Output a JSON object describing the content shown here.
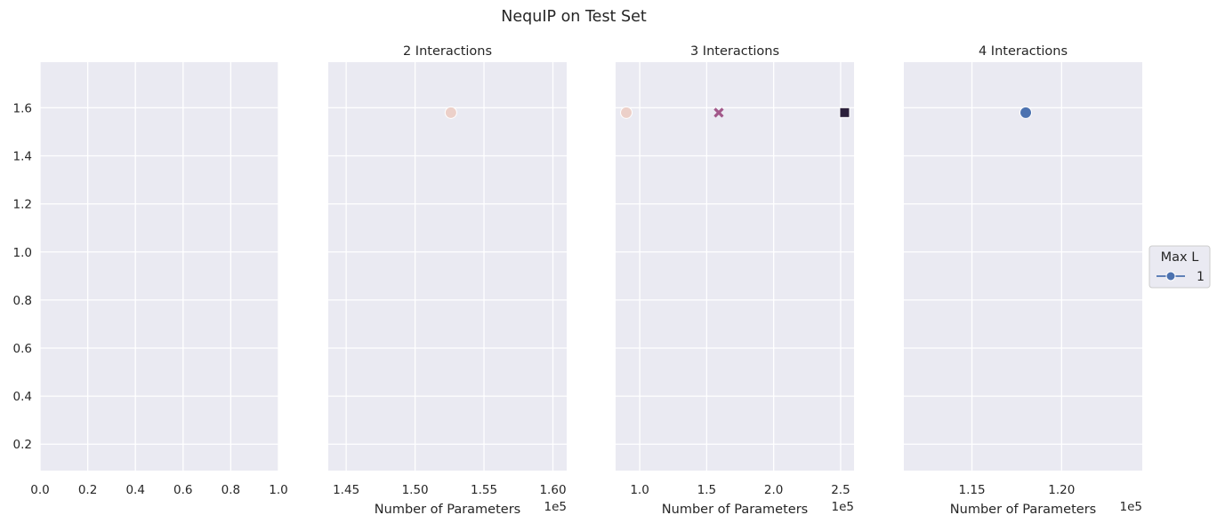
{
  "chart_data": {
    "title": "NequIP on Test Set",
    "legend": {
      "title": "Max L",
      "placement": "center-right",
      "entries": [
        {
          "label": "1",
          "color": "#4c72b0",
          "marker": "circle"
        }
      ]
    },
    "panels": [
      {
        "type": "scatter",
        "title": "",
        "xlabel": "",
        "xlim": [
          0.0,
          1.0
        ],
        "ylim": [
          0.09,
          1.79
        ],
        "x_ticks": [
          0.0,
          0.2,
          0.4,
          0.6,
          0.8,
          1.0
        ],
        "x_tick_labels": [
          "0.0",
          "0.2",
          "0.4",
          "0.6",
          "0.8",
          "1.0"
        ],
        "x_offset_label": "",
        "show_y_ticks": true,
        "y_ticks": [
          0.2,
          0.4,
          0.6,
          0.8,
          1.0,
          1.2,
          1.4,
          1.6
        ],
        "y_tick_labels": [
          "0.2",
          "0.4",
          "0.6",
          "0.8",
          "1.0",
          "1.2",
          "1.4",
          "1.6"
        ],
        "points": []
      },
      {
        "type": "scatter",
        "title": "2 Interactions",
        "xlabel": "Number of Parameters",
        "xlim": [
          1.437,
          1.61
        ],
        "ylim": [
          0.09,
          1.79
        ],
        "x_ticks": [
          1.45,
          1.5,
          1.55,
          1.6
        ],
        "x_tick_labels": [
          "1.45",
          "1.50",
          "1.55",
          "1.60"
        ],
        "x_offset_label": "1e5",
        "show_y_ticks": false,
        "y_ticks": [
          0.2,
          0.4,
          0.6,
          0.8,
          1.0,
          1.2,
          1.4,
          1.6
        ],
        "points": [
          {
            "x": 1.526,
            "y": 1.58,
            "color": "#ecd0c9",
            "marker": "circle"
          }
        ]
      },
      {
        "type": "scatter",
        "title": "3 Interactions",
        "xlabel": "Number of Parameters",
        "xlim": [
          0.82,
          2.6
        ],
        "ylim": [
          0.09,
          1.79
        ],
        "x_ticks": [
          1.0,
          1.5,
          2.0,
          2.5
        ],
        "x_tick_labels": [
          "1.0",
          "1.5",
          "2.0",
          "2.5"
        ],
        "x_offset_label": "1e5",
        "show_y_ticks": false,
        "y_ticks": [
          0.2,
          0.4,
          0.6,
          0.8,
          1.0,
          1.2,
          1.4,
          1.6
        ],
        "points": [
          {
            "x": 0.9,
            "y": 1.58,
            "color": "#ecd0c9",
            "marker": "circle"
          },
          {
            "x": 1.59,
            "y": 1.58,
            "color": "#a2588a",
            "marker": "x"
          },
          {
            "x": 2.53,
            "y": 1.58,
            "color": "#2b1f3b",
            "marker": "square"
          }
        ]
      },
      {
        "type": "scatter",
        "title": "4 Interactions",
        "xlabel": "Number of Parameters",
        "xlim": [
          1.112,
          1.245
        ],
        "ylim": [
          0.09,
          1.79
        ],
        "x_ticks": [
          1.15,
          1.2
        ],
        "x_tick_labels": [
          "1.15",
          "1.20"
        ],
        "x_offset_label": "1e5",
        "show_y_ticks": false,
        "y_ticks": [
          0.2,
          0.4,
          0.6,
          0.8,
          1.0,
          1.2,
          1.4,
          1.6
        ],
        "points": [
          {
            "x": 1.18,
            "y": 1.58,
            "color": "#4c72b0",
            "marker": "circle"
          }
        ]
      }
    ]
  }
}
